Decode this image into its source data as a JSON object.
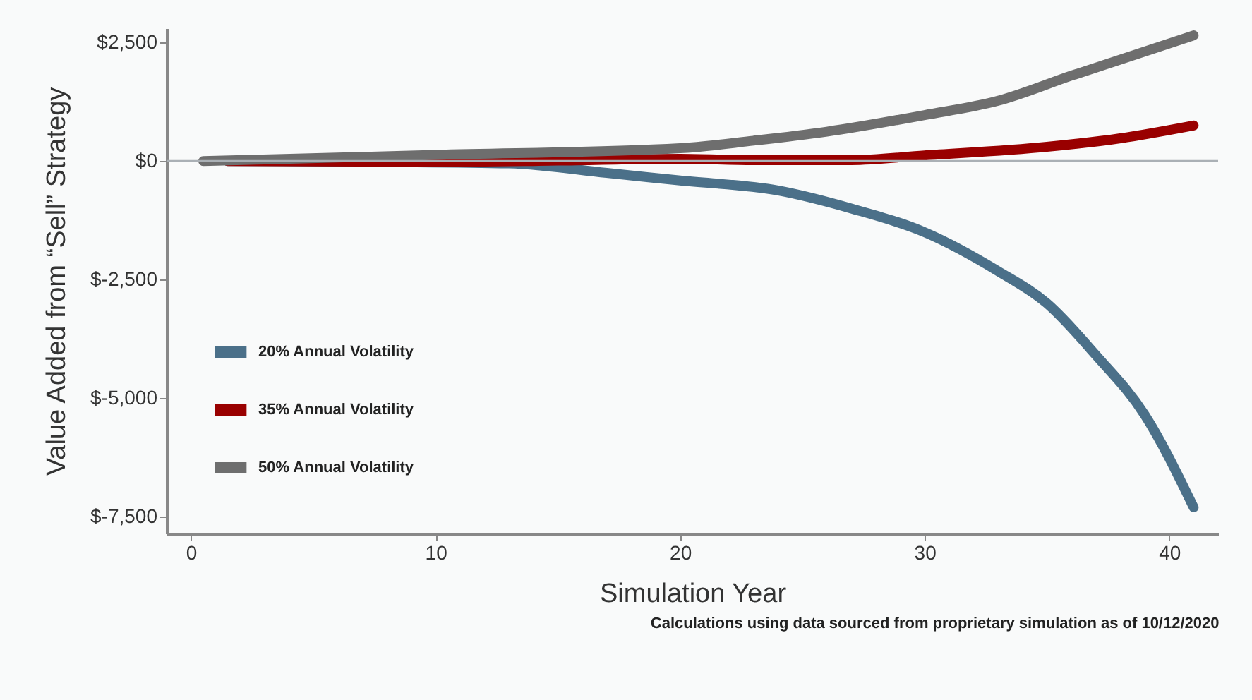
{
  "chart_data": {
    "type": "line",
    "xlabel": "Simulation Year",
    "ylabel": "Value Added from “Sell” Strategy",
    "annotations": [
      "Calculations using data sourced from proprietary simulation as of 10/12/2020"
    ],
    "xlim": [
      -1,
      42
    ],
    "xticks": [
      0,
      10,
      20,
      30,
      40
    ],
    "ylim": [
      -7850,
      2800
    ],
    "yticks": [
      {
        "value": 2500,
        "label": "$2,500"
      },
      {
        "value": 0,
        "label": "$0"
      },
      {
        "value": -2500,
        "label": "$-2,500"
      },
      {
        "value": -5000,
        "label": "$-5,000"
      },
      {
        "value": -7500,
        "label": "$-7,500"
      }
    ],
    "grid": false,
    "legend": "bottom left",
    "line_style": "solid",
    "ref_lines": [
      {
        "axis": "y",
        "value": 0,
        "label": null,
        "color": "#aab0b5"
      }
    ],
    "series": [
      {
        "name": "20% Annual Volatility",
        "color": "#4b7089",
        "x": [
          1.5,
          8,
          13,
          17,
          20,
          24,
          27,
          30,
          33,
          35,
          37,
          39,
          41
        ],
        "values": [
          0,
          -20,
          -50,
          -250,
          -410,
          -620,
          -1000,
          -1500,
          -2320,
          -3000,
          -4090,
          -5350,
          -7300
        ]
      },
      {
        "name": "35% Annual Volatility",
        "color": "#990000",
        "x": [
          1.5,
          10,
          15,
          20,
          23,
          27,
          30,
          35,
          38,
          41
        ],
        "values": [
          0,
          -20,
          10,
          50,
          20,
          20,
          120,
          300,
          480,
          750
        ]
      },
      {
        "name": "50% Annual Volatility",
        "color": "#6e6e6e",
        "x": [
          0.5,
          10,
          20,
          23,
          26,
          30,
          33,
          36,
          41
        ],
        "values": [
          0,
          130,
          270,
          430,
          620,
          970,
          1270,
          1800,
          2650
        ]
      }
    ]
  }
}
